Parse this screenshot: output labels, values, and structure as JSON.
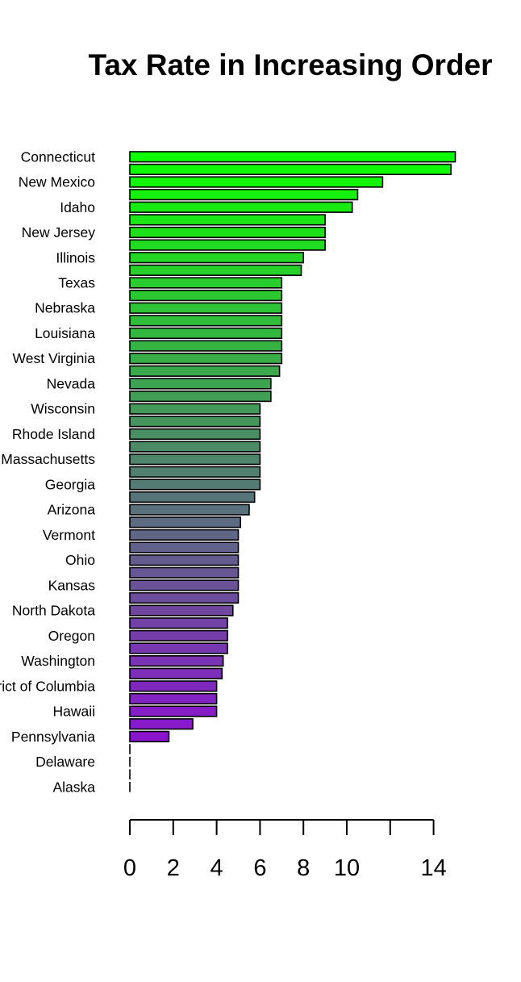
{
  "chart_data": {
    "type": "bar",
    "orientation": "horizontal",
    "title": "Tax Rate in Increasing Order",
    "xlabel": "",
    "ylabel": "",
    "xlim": [
      0,
      15
    ],
    "x_ticks": [
      0,
      2,
      4,
      6,
      8,
      10,
      12,
      14
    ],
    "x_tick_labels": [
      "0",
      "2",
      "4",
      "6",
      "8",
      "10",
      "",
      "14"
    ],
    "grid": false,
    "legend": "none",
    "categories": [
      "Connecticut",
      "",
      "New Mexico",
      "",
      "Idaho",
      "",
      "New Jersey",
      "",
      "Illinois",
      "",
      "Texas",
      "",
      "Nebraska",
      "",
      "Louisiana",
      "",
      "West Virginia",
      "",
      "Nevada",
      "",
      "Wisconsin",
      "",
      "Rhode Island",
      "",
      "Massachusetts",
      "",
      "Georgia",
      "",
      "Arizona",
      "",
      "Vermont",
      "",
      "Ohio",
      "",
      "Kansas",
      "",
      "North Dakota",
      "",
      "Oregon",
      "",
      "Washington",
      "",
      "District of Columbia",
      "",
      "Hawaii",
      "",
      "Pennsylvania",
      "",
      "Delaware",
      "",
      "Alaska"
    ],
    "values": [
      15.0,
      14.8,
      11.65,
      10.5,
      10.25,
      9.0,
      9.0,
      9.0,
      8.0,
      7.9,
      7.0,
      7.0,
      7.0,
      7.0,
      7.0,
      7.0,
      7.0,
      6.9,
      6.5,
      6.5,
      6.0,
      6.0,
      6.0,
      6.0,
      6.0,
      6.0,
      6.0,
      5.75,
      5.5,
      5.1,
      5.0,
      5.0,
      5.0,
      5.0,
      5.0,
      5.0,
      4.75,
      4.5,
      4.5,
      4.5,
      4.3,
      4.25,
      4.0,
      4.0,
      4.0,
      2.9,
      1.8,
      0.0,
      0.0,
      0.0,
      0.0
    ],
    "color_scale": {
      "start": "#0dff00",
      "end": "#9500e0"
    }
  }
}
